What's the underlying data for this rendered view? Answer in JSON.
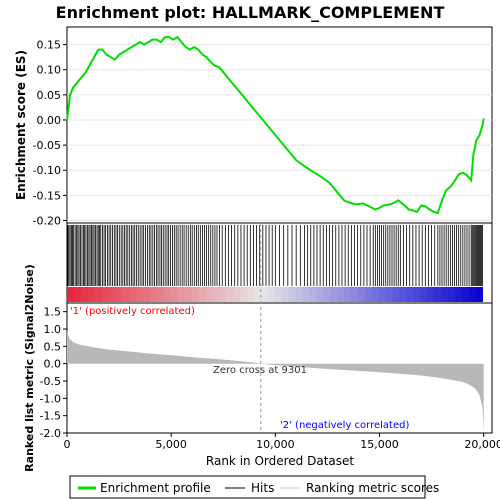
{
  "colors": {
    "profile": "#00dd00",
    "hits": "#000000",
    "metric_fill": "#b8b8b8",
    "pos_label": "#ff0000",
    "neg_label": "#0000ff",
    "zero_line": "#999999"
  },
  "chart_data": {
    "type": "line",
    "title": "Enrichment plot: HALLMARK_COMPLEMENT",
    "xlabel": "Rank in Ordered Dataset",
    "top": {
      "ylabel": "Enrichment score (ES)",
      "ylim": [
        -0.205,
        0.185
      ],
      "yticks": [
        "0.15",
        "0.10",
        "0.05",
        "0.00",
        "-0.05",
        "-0.10",
        "-0.15",
        "-0.20"
      ],
      "ytick_values": [
        0.15,
        0.1,
        0.05,
        0.0,
        -0.05,
        -0.1,
        -0.15,
        -0.2
      ],
      "series": [
        {
          "x": [
            0,
            150,
            300,
            500,
            700,
            900,
            1100,
            1300,
            1500,
            1700,
            1900,
            2100,
            2300,
            2500,
            2700,
            2900,
            3100,
            3300,
            3500,
            3700,
            3900,
            4100,
            4300,
            4500,
            4700,
            4900,
            5100,
            5300,
            5500,
            5700,
            5900,
            6100,
            6300,
            6500,
            6700,
            6900,
            7100,
            7300,
            7500,
            7800,
            8100,
            8400,
            8700,
            9000,
            9300,
            9600,
            9900,
            10200,
            10600,
            11000,
            11400,
            11800,
            12200,
            12600,
            13000,
            13300,
            13600,
            13900,
            14200,
            14500,
            14800,
            15000,
            15200,
            15500,
            15700,
            15900,
            16200,
            16400,
            16600,
            16800,
            17000,
            17200,
            17400,
            17600,
            17800,
            18000,
            18200,
            18400,
            18600,
            18800,
            19000,
            19200,
            19400,
            19500,
            19650,
            19800,
            19950,
            20000
          ],
          "y": [
            0.0,
            0.05,
            0.065,
            0.075,
            0.085,
            0.095,
            0.11,
            0.125,
            0.14,
            0.14,
            0.13,
            0.125,
            0.12,
            0.13,
            0.135,
            0.14,
            0.145,
            0.15,
            0.155,
            0.15,
            0.155,
            0.16,
            0.16,
            0.155,
            0.165,
            0.165,
            0.16,
            0.165,
            0.155,
            0.145,
            0.14,
            0.145,
            0.14,
            0.13,
            0.125,
            0.115,
            0.108,
            0.105,
            0.095,
            0.08,
            0.065,
            0.05,
            0.035,
            0.02,
            0.005,
            -0.01,
            -0.025,
            -0.04,
            -0.06,
            -0.08,
            -0.092,
            -0.103,
            -0.113,
            -0.125,
            -0.145,
            -0.16,
            -0.165,
            -0.168,
            -0.166,
            -0.172,
            -0.178,
            -0.175,
            -0.17,
            -0.168,
            -0.165,
            -0.16,
            -0.17,
            -0.178,
            -0.18,
            -0.183,
            -0.17,
            -0.172,
            -0.178,
            -0.183,
            -0.185,
            -0.16,
            -0.14,
            -0.133,
            -0.122,
            -0.108,
            -0.105,
            -0.11,
            -0.12,
            -0.07,
            -0.04,
            -0.03,
            -0.01,
            0.003
          ]
        }
      ]
    },
    "hits": {
      "positions": [
        40,
        90,
        150,
        210,
        260,
        320,
        390,
        450,
        520,
        580,
        650,
        720,
        790,
        850,
        910,
        980,
        1050,
        1110,
        1180,
        1240,
        1300,
        1370,
        1440,
        1500,
        1560,
        1620,
        1700,
        1780,
        1850,
        1940,
        2020,
        2100,
        2180,
        2270,
        2350,
        2420,
        2510,
        2600,
        2680,
        2760,
        2840,
        2920,
        3010,
        3090,
        3170,
        3250,
        3330,
        3420,
        3510,
        3600,
        3680,
        3770,
        3860,
        3950,
        4030,
        4120,
        4200,
        4290,
        4370,
        4460,
        4540,
        4620,
        4710,
        4800,
        4880,
        4970,
        5060,
        5150,
        5240,
        5330,
        5430,
        5530,
        5620,
        5720,
        5820,
        5920,
        6010,
        6110,
        6210,
        6300,
        6400,
        6500,
        6600,
        6700,
        6800,
        6900,
        7000,
        7100,
        7200,
        7320,
        7450,
        7600,
        7750,
        7900,
        8050,
        8200,
        8350,
        8500,
        8650,
        8800,
        8950,
        9100,
        9250,
        9400,
        9550,
        9700,
        9850,
        10000,
        10200,
        10400,
        10600,
        10800,
        11000,
        11200,
        11400,
        11550,
        11700,
        11850,
        12000,
        12150,
        12300,
        12450,
        12600,
        12750,
        12900,
        13050,
        13200,
        13350,
        13500,
        13650,
        13800,
        13950,
        14100,
        14250,
        14400,
        14550,
        14700,
        14800,
        14900,
        15000,
        15100,
        15200,
        15300,
        15400,
        15500,
        15600,
        15700,
        15800,
        15900,
        16000,
        16150,
        16300,
        16450,
        16600,
        16750,
        16900,
        17050,
        17200,
        17350,
        17500,
        17650,
        17800,
        17900,
        18000,
        18100,
        18200,
        18300,
        18400,
        18500,
        18600,
        18700,
        18800,
        18900,
        19000,
        19100,
        19200,
        19300,
        19400,
        19450,
        19500,
        19550,
        19600,
        19650,
        19700,
        19750,
        19800,
        19850,
        19900,
        19950
      ]
    },
    "metric": {
      "ylabel": "Ranked list metric (Signal2Noise)",
      "ylim": [
        -2.0,
        1.75
      ],
      "yticks": [
        "1.5",
        "1.0",
        "0.5",
        "0.0",
        "-0.5",
        "-1.0",
        "-1.5",
        "-2.0"
      ],
      "ytick_values": [
        1.5,
        1.0,
        0.5,
        0.0,
        -0.5,
        -1.0,
        -1.5,
        -2.0
      ],
      "x": [
        0,
        50,
        150,
        300,
        600,
        1000,
        1500,
        2000,
        3000,
        4000,
        5000,
        6000,
        7000,
        8000,
        9000,
        9301,
        10000,
        11000,
        12000,
        13000,
        14000,
        15000,
        16000,
        17000,
        17500,
        18000,
        18500,
        19000,
        19300,
        19600,
        19800,
        19950,
        20000
      ],
      "y": [
        0.95,
        0.82,
        0.7,
        0.62,
        0.55,
        0.5,
        0.45,
        0.41,
        0.35,
        0.29,
        0.24,
        0.19,
        0.14,
        0.09,
        0.03,
        0.0,
        -0.04,
        -0.09,
        -0.13,
        -0.17,
        -0.21,
        -0.25,
        -0.29,
        -0.34,
        -0.38,
        -0.42,
        -0.47,
        -0.53,
        -0.6,
        -0.72,
        -0.9,
        -1.3,
        -2.0
      ]
    },
    "xlim": [
      0,
      20400
    ],
    "xticks": [
      "0",
      "5,000",
      "10,000",
      "15,000",
      "20,000"
    ],
    "xtick_values": [
      0,
      5000,
      10000,
      15000,
      20000
    ],
    "zero_cross": 9301,
    "labels": {
      "positive": "'1' (positively correlated)",
      "negative": "'2' (negatively correlated)",
      "zero_cross": "Zero cross at 9301"
    },
    "legend": {
      "placement": "bottom",
      "entries": [
        "Enrichment profile",
        "Hits",
        "Ranking metric scores"
      ]
    }
  }
}
